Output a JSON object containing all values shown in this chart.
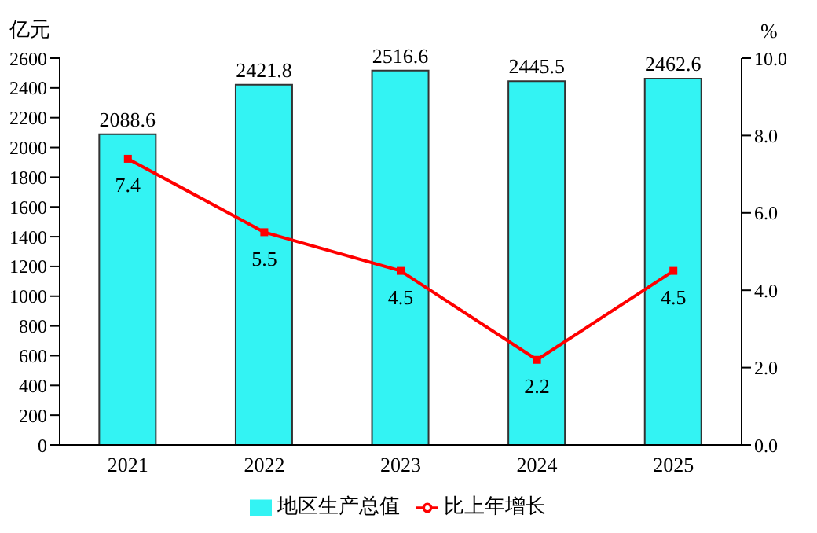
{
  "chart_data": {
    "type": "bar",
    "categories": [
      "2021",
      "2022",
      "2023",
      "2024",
      "2025"
    ],
    "series": [
      {
        "name": "地区生产总值",
        "color": "#33f3f3",
        "values": [
          2088.6,
          2421.8,
          2516.6,
          2445.5,
          2462.6
        ]
      },
      {
        "name": "比上年增长",
        "type": "line",
        "axis": "y2",
        "color": "#ff0000",
        "marker": "square",
        "values": [
          7.4,
          5.5,
          4.5,
          2.2,
          4.5
        ]
      }
    ],
    "ylabel": "亿元",
    "y2label": "%",
    "ylim": [
      0,
      2600
    ],
    "yticks": [
      0,
      200,
      400,
      600,
      800,
      1000,
      1200,
      1400,
      1600,
      1800,
      2000,
      2200,
      2400,
      2600
    ],
    "y2lim": [
      0,
      10
    ],
    "y2ticks": [
      {
        "value": 0,
        "label": "0.0"
      },
      {
        "value": 2,
        "label": "2.0"
      },
      {
        "value": 4,
        "label": "4.0"
      },
      {
        "value": 6,
        "label": "6.0"
      },
      {
        "value": 8,
        "label": "8.0"
      },
      {
        "value": 10,
        "label": "10.0"
      }
    ],
    "data_labels": true,
    "legend": "bottom"
  }
}
